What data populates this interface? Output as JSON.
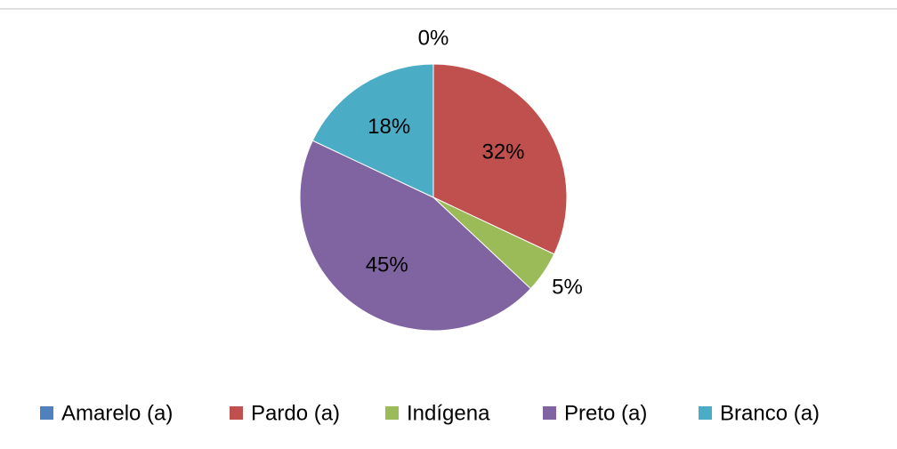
{
  "chart_data": {
    "type": "pie",
    "categories": [
      "Amarelo (a)",
      "Pardo (a)",
      "Indígena",
      "Preto (a)",
      "Branco (a)"
    ],
    "values": [
      0,
      32,
      5,
      45,
      18
    ],
    "value_labels": [
      "0%",
      "32%",
      "5%",
      "45%",
      "18%"
    ],
    "colors": [
      "#4f81bd",
      "#c0504d",
      "#9bbb59",
      "#8064a2",
      "#4bacc6"
    ],
    "legend": "bottom"
  }
}
